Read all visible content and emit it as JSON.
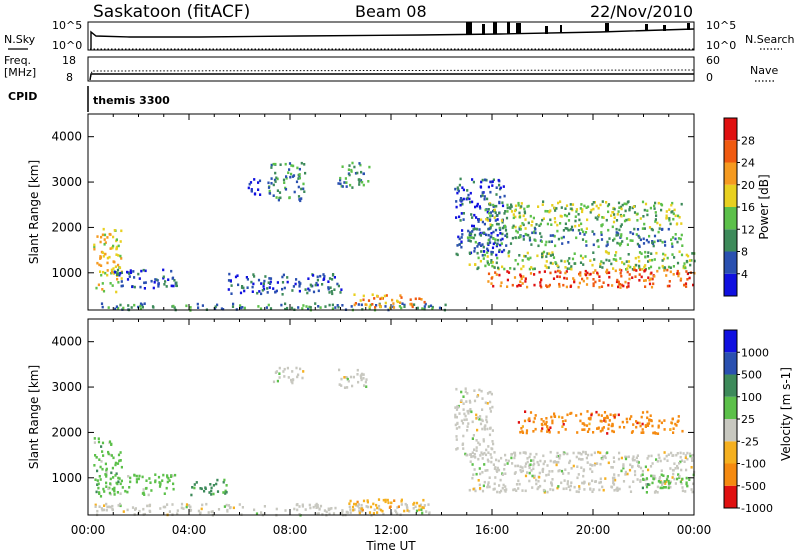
{
  "header": {
    "station": "Saskatoon (fitACF)",
    "beam": "Beam 08",
    "date": "22/Nov/2010"
  },
  "strip1": {
    "left_label": "N.Sky",
    "left_ticks": [
      "10^5",
      "10^0"
    ],
    "right_ticks": [
      "10^5",
      "10^0"
    ],
    "right_label": "N.Search"
  },
  "strip2": {
    "left_label_1": "Freq.",
    "left_label_2": "[MHz]",
    "left_ticks": [
      "18",
      "8"
    ],
    "right_ticks": [
      "60",
      "0"
    ],
    "right_label": "Nave"
  },
  "strip3": {
    "left_label": "CPID",
    "cpid_text": "themis 3300"
  },
  "colors": {
    "power": [
      "#1010e0",
      "#2a50b0",
      "#3d8a5a",
      "#5cc04a",
      "#e8d020",
      "#f59a20",
      "#f05a10",
      "#e01010"
    ],
    "velocity": [
      "#1010e0",
      "#2a50b0",
      "#3d8a5a",
      "#5cc04a",
      "#c8c8c0",
      "#f5b020",
      "#f58a10",
      "#e01010"
    ]
  },
  "chart_data": [
    {
      "type": "heatmap",
      "name": "power",
      "ylabel": "Slant Range [km]",
      "xlim": [
        "00:00",
        "24:00"
      ],
      "ylim": [
        180,
        4500
      ],
      "x_ticks": [
        "00:00",
        "04:00",
        "08:00",
        "12:00",
        "16:00",
        "20:00",
        "00:00"
      ],
      "y_ticks": [
        1000,
        2000,
        3000,
        4000
      ],
      "colorbar": {
        "label": "Power [dB]",
        "ticks": [
          "4",
          "8",
          "12",
          "16",
          "20",
          "24",
          "28"
        ],
        "range": [
          0,
          32
        ]
      },
      "regions": [
        {
          "t0": 0.2,
          "t1": 1.3,
          "r0": 600,
          "r1": 2000,
          "level": 20
        },
        {
          "t0": 1.0,
          "t1": 3.5,
          "r0": 650,
          "r1": 1100,
          "level": 8
        },
        {
          "t0": 5.5,
          "t1": 10.0,
          "r0": 550,
          "r1": 1000,
          "level": 6
        },
        {
          "t0": 0.5,
          "t1": 14.5,
          "r0": 200,
          "r1": 350,
          "level": 10
        },
        {
          "t0": 6.3,
          "t1": 6.8,
          "r0": 2700,
          "r1": 3200,
          "level": 5
        },
        {
          "t0": 7.1,
          "t1": 8.6,
          "r0": 2600,
          "r1": 3450,
          "level": 12
        },
        {
          "t0": 9.8,
          "t1": 11.1,
          "r0": 2900,
          "r1": 3450,
          "level": 10
        },
        {
          "t0": 10.5,
          "t1": 13.3,
          "r0": 250,
          "r1": 550,
          "level": 24
        },
        {
          "t0": 14.5,
          "t1": 16.5,
          "r0": 1400,
          "r1": 3100,
          "level": 8
        },
        {
          "t0": 15.0,
          "t1": 24.0,
          "r0": 1100,
          "r1": 1500,
          "level": 14
        },
        {
          "t0": 15.8,
          "t1": 24.0,
          "r0": 700,
          "r1": 1100,
          "level": 26
        },
        {
          "t0": 15.5,
          "t1": 23.5,
          "r0": 2000,
          "r1": 2600,
          "level": 16
        },
        {
          "t0": 15.0,
          "t1": 23.5,
          "r0": 1600,
          "r1": 2000,
          "level": 10
        }
      ]
    },
    {
      "type": "heatmap",
      "name": "velocity",
      "ylabel": "Slant Range [km]",
      "xlabel": "Time UT",
      "xlim": [
        "00:00",
        "24:00"
      ],
      "ylim": [
        180,
        4500
      ],
      "x_ticks": [
        "00:00",
        "04:00",
        "08:00",
        "12:00",
        "16:00",
        "20:00",
        "00:00"
      ],
      "y_ticks": [
        1000,
        2000,
        3000,
        4000
      ],
      "colorbar": {
        "label": "Velocity [m s-1]",
        "ticks": [
          "1000",
          "500",
          "100",
          "25",
          "-25",
          "-100",
          "-500",
          "-1000"
        ]
      },
      "regions": [
        {
          "t0": 0.2,
          "t1": 1.3,
          "r0": 600,
          "r1": 1900,
          "level": 3
        },
        {
          "t0": 1.0,
          "t1": 3.5,
          "r0": 650,
          "r1": 1100,
          "level": 3
        },
        {
          "t0": 4.0,
          "t1": 5.5,
          "r0": 650,
          "r1": 1000,
          "level": 2
        },
        {
          "t0": 0.2,
          "t1": 13.5,
          "r0": 200,
          "r1": 450,
          "level": 4
        },
        {
          "t0": 10.3,
          "t1": 13.3,
          "r0": 250,
          "r1": 550,
          "level": 5
        },
        {
          "t0": 7.3,
          "t1": 8.6,
          "r0": 3100,
          "r1": 3450,
          "level": 4
        },
        {
          "t0": 9.8,
          "t1": 11.0,
          "r0": 3000,
          "r1": 3450,
          "level": 4
        },
        {
          "t0": 15.0,
          "t1": 24.0,
          "r0": 700,
          "r1": 1600,
          "level": 4
        },
        {
          "t0": 17.0,
          "t1": 23.5,
          "r0": 2000,
          "r1": 2500,
          "level": 6
        },
        {
          "t0": 14.5,
          "t1": 16.0,
          "r0": 1500,
          "r1": 3000,
          "level": 4
        },
        {
          "t0": 21.5,
          "t1": 24.0,
          "r0": 800,
          "r1": 1100,
          "level": 3
        }
      ]
    }
  ]
}
